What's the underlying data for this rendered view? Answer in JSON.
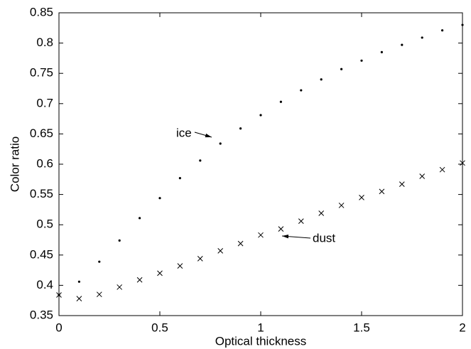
{
  "chart_data": {
    "type": "scatter",
    "x_label": "Optical thickness",
    "y_label": "Color ratio",
    "x": [
      0,
      0.1,
      0.2,
      0.3,
      0.4,
      0.5,
      0.6,
      0.7,
      0.8,
      0.9,
      1.0,
      1.1,
      1.2,
      1.3,
      1.4,
      1.5,
      1.6,
      1.7,
      1.8,
      1.9,
      2.0
    ],
    "series": [
      {
        "name": "ice",
        "color": "#000000",
        "marker": "dot",
        "values": [
          0.384,
          0.406,
          0.439,
          0.474,
          0.511,
          0.544,
          0.577,
          0.606,
          0.634,
          0.659,
          0.681,
          0.703,
          0.722,
          0.74,
          0.757,
          0.771,
          0.785,
          0.797,
          0.809,
          0.821,
          0.83
        ]
      },
      {
        "name": "dust",
        "color": "#000000",
        "marker": "x",
        "values": [
          0.384,
          0.378,
          0.385,
          0.397,
          0.409,
          0.42,
          0.432,
          0.444,
          0.457,
          0.469,
          0.483,
          0.493,
          0.506,
          0.519,
          0.532,
          0.545,
          0.555,
          0.567,
          0.58,
          0.591,
          0.602
        ]
      }
    ],
    "xlim": [
      0,
      2
    ],
    "xticks": [
      0,
      0.5,
      1,
      1.5,
      2
    ],
    "ylim": [
      0.35,
      0.85
    ],
    "yticks": [
      0.35,
      0.4,
      0.45,
      0.5,
      0.55,
      0.6,
      0.65,
      0.7,
      0.75,
      0.8,
      0.85
    ],
    "grid": false
  }
}
